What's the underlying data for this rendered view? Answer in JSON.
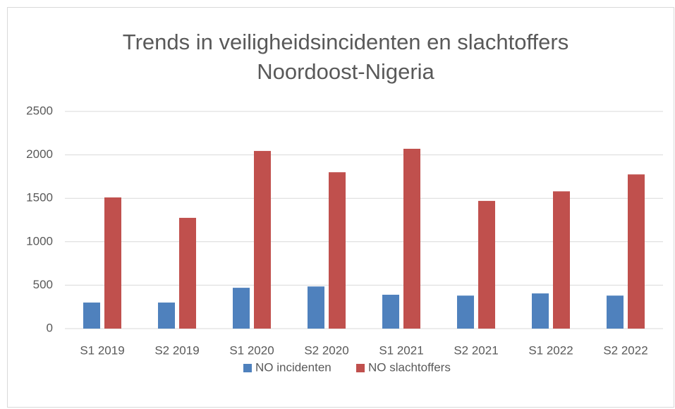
{
  "chart_data": {
    "type": "bar",
    "title": [
      "Trends in veiligheidsincidenten en slachtoffers",
      "Noordoost-Nigeria"
    ],
    "categories": [
      "S1 2019",
      "S2 2019",
      "S1 2020",
      "S2 2020",
      "S1 2021",
      "S2 2021",
      "S1 2022",
      "S2 2022"
    ],
    "series": [
      {
        "name": "NO incidenten",
        "color": "#4f81bd",
        "values": [
          300,
          300,
          470,
          485,
          390,
          380,
          405,
          380
        ]
      },
      {
        "name": "NO slachtoffers",
        "color": "#c0504d",
        "values": [
          1510,
          1275,
          2045,
          1800,
          2070,
          1470,
          1580,
          1775
        ]
      }
    ],
    "ylim": [
      0,
      2500
    ],
    "yticks": [
      0,
      500,
      1000,
      1500,
      2000,
      2500
    ],
    "grid": true,
    "legend": "bottom"
  }
}
